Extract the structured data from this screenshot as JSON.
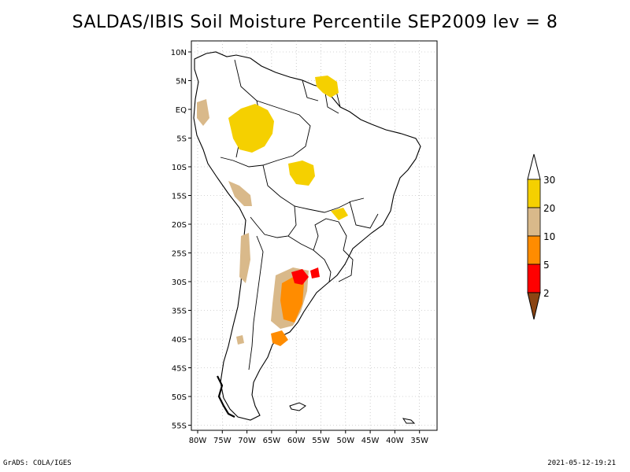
{
  "title": "SALDAS/IBIS Soil Moisture Percentile SEP2009 lev = 8",
  "footer": {
    "left": "GrADS: COLA/IGES",
    "right": "2021-05-12-19:21"
  },
  "lat_ticks": [
    "10N",
    "5N",
    "EQ",
    "5S",
    "10S",
    "15S",
    "20S",
    "25S",
    "30S",
    "35S",
    "40S",
    "45S",
    "50S",
    "55S"
  ],
  "lon_ticks": [
    "80W",
    "75W",
    "70W",
    "65W",
    "60W",
    "55W",
    "50W",
    "45W",
    "40W",
    "35W"
  ],
  "colorbar": {
    "labels": [
      "30",
      "20",
      "10",
      "5",
      "2"
    ],
    "colors": {
      "above_30": "#ffffff",
      "20_30": "#f5d000",
      "10_20": "#d9b98a",
      "5_10": "#ff8c00",
      "2_5": "#ff0000",
      "below_2": "#8b4513"
    }
  },
  "colors": {
    "coastline": "#000000",
    "grid": "#aaaaaa"
  }
}
